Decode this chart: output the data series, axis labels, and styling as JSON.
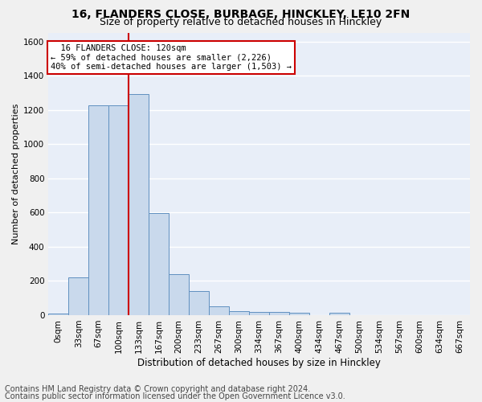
{
  "title1": "16, FLANDERS CLOSE, BURBAGE, HINCKLEY, LE10 2FN",
  "title2": "Size of property relative to detached houses in Hinckley",
  "xlabel": "Distribution of detached houses by size in Hinckley",
  "ylabel": "Number of detached properties",
  "bar_labels": [
    "0sqm",
    "33sqm",
    "67sqm",
    "100sqm",
    "133sqm",
    "167sqm",
    "200sqm",
    "233sqm",
    "267sqm",
    "300sqm",
    "334sqm",
    "367sqm",
    "400sqm",
    "434sqm",
    "467sqm",
    "500sqm",
    "534sqm",
    "567sqm",
    "600sqm",
    "634sqm",
    "667sqm"
  ],
  "bar_values": [
    10,
    220,
    1225,
    1225,
    1295,
    595,
    240,
    140,
    50,
    25,
    20,
    20,
    15,
    0,
    15,
    0,
    0,
    0,
    0,
    0,
    0
  ],
  "bar_color": "#c9d9ec",
  "bar_edge_color": "#6090c0",
  "ylim": [
    0,
    1650
  ],
  "yticks": [
    0,
    200,
    400,
    600,
    800,
    1000,
    1200,
    1400,
    1600
  ],
  "annotation_title": "16 FLANDERS CLOSE: 120sqm",
  "annotation_line1": "← 59% of detached houses are smaller (2,226)",
  "annotation_line2": "40% of semi-detached houses are larger (1,503) →",
  "annotation_box_color": "#ffffff",
  "annotation_box_edge": "#cc0000",
  "footer1": "Contains HM Land Registry data © Crown copyright and database right 2024.",
  "footer2": "Contains public sector information licensed under the Open Government Licence v3.0.",
  "bg_color": "#e8eef8",
  "grid_color": "#ffffff",
  "title1_fontsize": 10,
  "title2_fontsize": 9,
  "xlabel_fontsize": 8.5,
  "ylabel_fontsize": 8,
  "tick_fontsize": 7.5,
  "footer_fontsize": 7,
  "red_line_x": 4.0,
  "fig_facecolor": "#f0f0f0"
}
